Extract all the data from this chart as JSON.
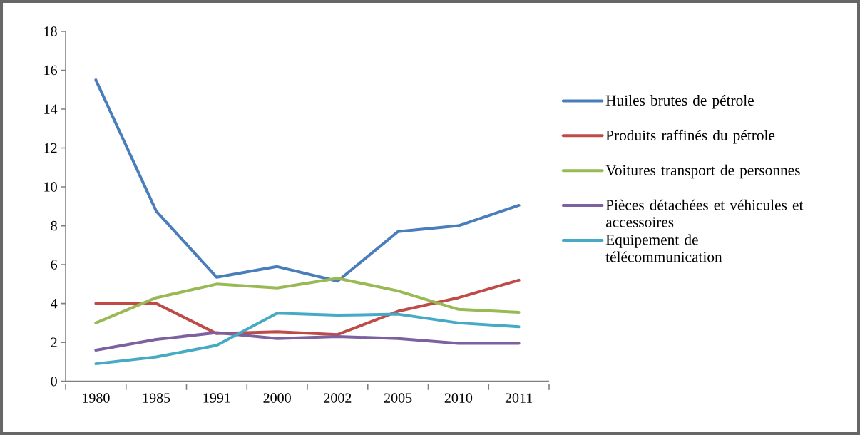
{
  "chart_data": {
    "type": "line",
    "categories": [
      "1980",
      "1985",
      "1991",
      "2000",
      "2002",
      "2005",
      "2010",
      "2011"
    ],
    "series": [
      {
        "name": "Huiles brutes de pétrole",
        "color": "#4a7ebb",
        "values": [
          15.5,
          8.75,
          5.35,
          5.9,
          5.15,
          7.7,
          8.0,
          9.05
        ]
      },
      {
        "name": "Produits raffinés du pétrole",
        "color": "#be4b48",
        "values": [
          4.0,
          4.0,
          2.45,
          2.55,
          2.4,
          3.6,
          4.3,
          5.2
        ]
      },
      {
        "name": "Voitures transport de personnes",
        "color": "#98b954",
        "values": [
          3.0,
          4.3,
          5.0,
          4.8,
          5.3,
          4.65,
          3.7,
          3.55
        ]
      },
      {
        "name": "Pièces détachées et véhicules et accessoires",
        "color": "#7d60a0",
        "values": [
          1.6,
          2.15,
          2.5,
          2.2,
          2.3,
          2.2,
          1.95,
          1.95
        ]
      },
      {
        "name": "Equipement de télécommunication",
        "color": "#46aac5",
        "values": [
          0.9,
          1.25,
          1.85,
          3.5,
          3.4,
          3.45,
          3.0,
          2.8
        ]
      }
    ],
    "ylim": [
      0,
      18
    ],
    "yticks": [
      0,
      2,
      4,
      6,
      8,
      10,
      12,
      14,
      16,
      18
    ],
    "grid": false,
    "legend": "right",
    "marker": "none",
    "line_style": "solid"
  }
}
